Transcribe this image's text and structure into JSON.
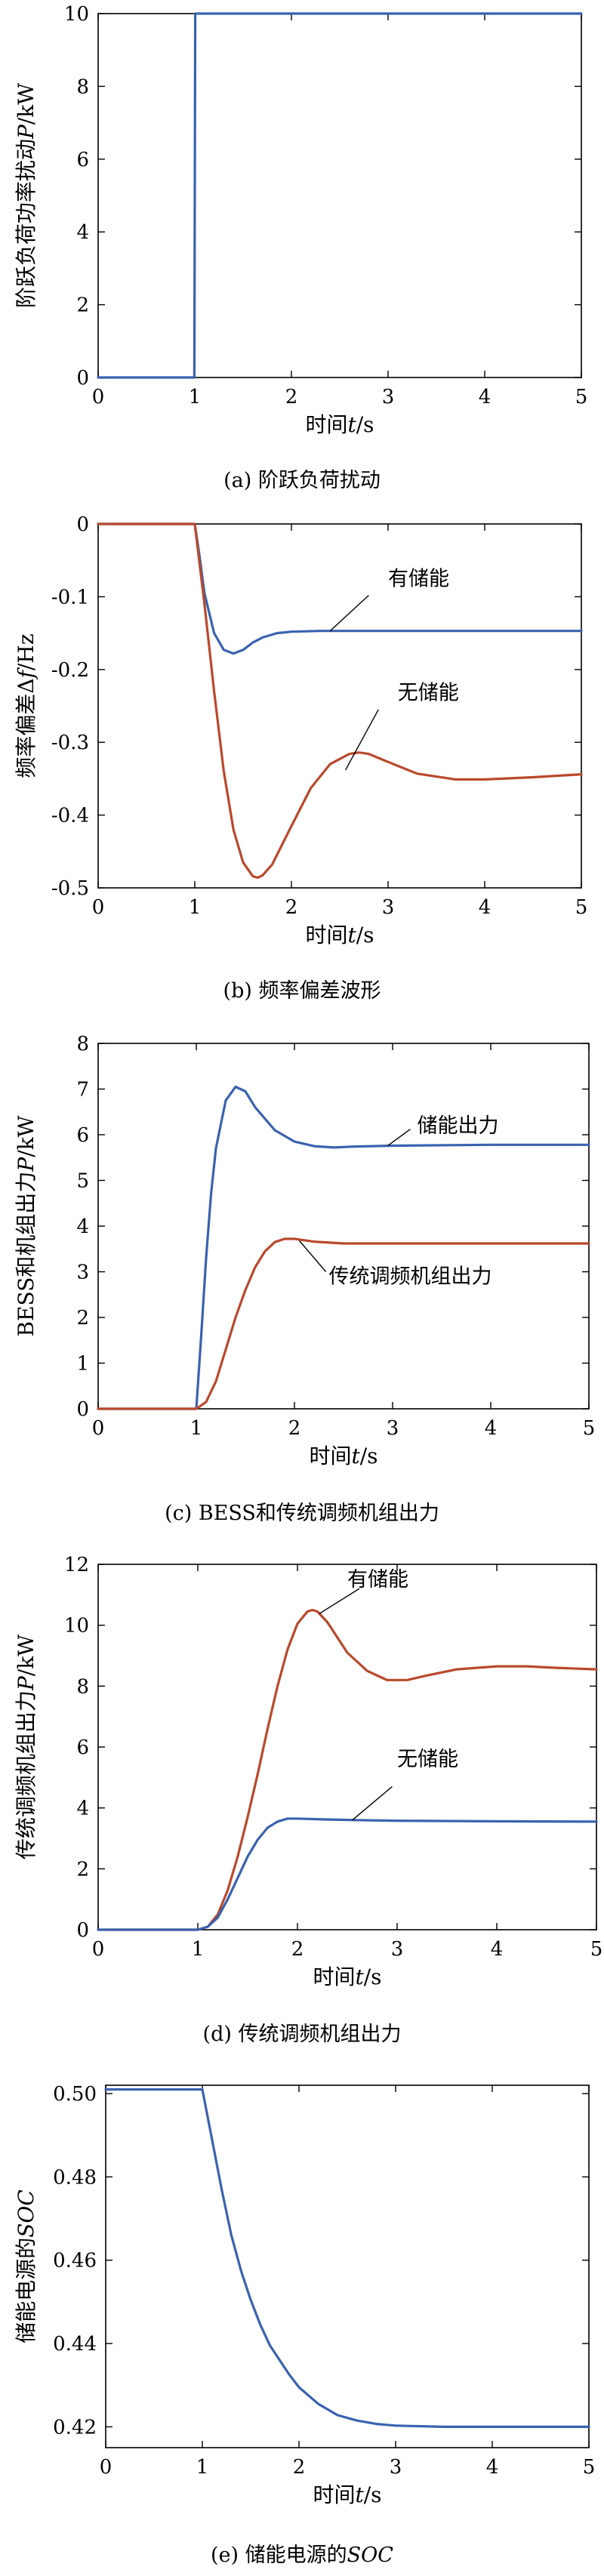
{
  "colors": {
    "blue": "#3a62b0",
    "red": "#b9492c",
    "axis": "#000000"
  },
  "charts": [
    {
      "type": "line",
      "title": "",
      "caption": "(a) 阶跃负荷扰动",
      "xlabel": "时间t/s",
      "ylabel": "阶跃负荷功率扰动P/kW",
      "xlim": [
        0,
        5
      ],
      "ylim": [
        0,
        10
      ],
      "xticks": [
        0,
        1,
        2,
        3,
        4,
        5
      ],
      "yticks": [
        0,
        2,
        4,
        6,
        8,
        10
      ],
      "ytick_labels": [
        "0",
        "2",
        "4",
        "6",
        "8",
        "10"
      ],
      "grid": false,
      "series": [
        {
          "color": "blue",
          "x": [
            0.0,
            0.995,
            1.0,
            1.005,
            5.0
          ],
          "y": [
            0.0,
            0.0,
            5.0,
            10.0,
            10.0
          ]
        }
      ],
      "annotations": []
    },
    {
      "type": "line",
      "title": "",
      "caption": "(b) 频率偏差波形",
      "xlabel": "时间t/s",
      "ylabel": "频率偏差Δf/Hz",
      "xlim": [
        0,
        5
      ],
      "ylim": [
        -0.5,
        0
      ],
      "xticks": [
        0,
        1,
        2,
        3,
        4,
        5
      ],
      "yticks": [
        0,
        -0.1,
        -0.2,
        -0.3,
        -0.4,
        -0.5
      ],
      "ytick_labels": [
        "0",
        "-0.1",
        "-0.2",
        "-0.3",
        "-0.4",
        "-0.5"
      ],
      "grid": false,
      "series": [
        {
          "color": "blue",
          "x": [
            0.0,
            1.0,
            1.05,
            1.1,
            1.2,
            1.3,
            1.4,
            1.5,
            1.6,
            1.7,
            1.85,
            2.0,
            2.3,
            2.7,
            3.2,
            4.0,
            5.0
          ],
          "y": [
            0.0,
            0.0,
            -0.045,
            -0.095,
            -0.15,
            -0.173,
            -0.178,
            -0.173,
            -0.163,
            -0.156,
            -0.15,
            -0.148,
            -0.147,
            -0.147,
            -0.147,
            -0.147,
            -0.147
          ]
        },
        {
          "color": "red",
          "x": [
            0.0,
            1.0,
            1.1,
            1.2,
            1.3,
            1.4,
            1.5,
            1.6,
            1.65,
            1.7,
            1.8,
            2.0,
            2.2,
            2.4,
            2.6,
            2.7,
            2.8,
            3.0,
            3.3,
            3.7,
            4.0,
            4.5,
            5.0
          ],
          "y": [
            0.0,
            0.0,
            -0.11,
            -0.23,
            -0.34,
            -0.42,
            -0.465,
            -0.484,
            -0.486,
            -0.483,
            -0.468,
            -0.415,
            -0.363,
            -0.33,
            -0.316,
            -0.314,
            -0.316,
            -0.327,
            -0.343,
            -0.351,
            -0.351,
            -0.348,
            -0.344
          ]
        }
      ],
      "annotations": [
        {
          "text": "有储能",
          "label_x": 3.0,
          "label_y": -0.075,
          "tip_x": 2.4,
          "tip_y": -0.147,
          "elbow_x": 2.8,
          "elbow_y": -0.098
        },
        {
          "text": "无储能",
          "label_x": 3.1,
          "label_y": -0.232,
          "tip_x": 2.56,
          "tip_y": -0.338,
          "elbow_x": 2.9,
          "elbow_y": -0.255
        }
      ]
    },
    {
      "type": "line",
      "title": "",
      "caption": "(c) BESS和传统调频机组出力",
      "xlabel": "时间t/s",
      "ylabel": "BESS和机组出力P/kW",
      "xlim": [
        0,
        5
      ],
      "ylim": [
        0,
        8
      ],
      "xticks": [
        0,
        1,
        2,
        3,
        4,
        5
      ],
      "yticks": [
        0,
        1,
        2,
        3,
        4,
        5,
        6,
        7,
        8
      ],
      "ytick_labels": [
        "0",
        "1",
        "2",
        "3",
        "4",
        "5",
        "6",
        "7",
        "8"
      ],
      "grid": false,
      "series": [
        {
          "color": "blue",
          "x": [
            0.0,
            1.0,
            1.05,
            1.1,
            1.15,
            1.2,
            1.3,
            1.4,
            1.5,
            1.6,
            1.8,
            2.0,
            2.2,
            2.4,
            2.6,
            3.0,
            4.0,
            5.0
          ],
          "y": [
            0.0,
            0.0,
            1.6,
            3.3,
            4.7,
            5.7,
            6.75,
            7.05,
            6.95,
            6.6,
            6.1,
            5.85,
            5.75,
            5.72,
            5.74,
            5.76,
            5.78,
            5.78
          ]
        },
        {
          "color": "red",
          "x": [
            0.0,
            1.0,
            1.1,
            1.2,
            1.3,
            1.4,
            1.5,
            1.6,
            1.7,
            1.8,
            1.9,
            2.0,
            2.2,
            2.5,
            3.0,
            4.0,
            5.0
          ],
          "y": [
            0.0,
            0.0,
            0.15,
            0.6,
            1.3,
            2.0,
            2.6,
            3.1,
            3.45,
            3.65,
            3.72,
            3.72,
            3.66,
            3.62,
            3.62,
            3.62,
            3.62
          ]
        }
      ],
      "annotations": [
        {
          "text": "储能出力",
          "label_x": 3.25,
          "label_y": 6.2,
          "tip_x": 2.95,
          "tip_y": 5.76,
          "elbow_x": 3.18,
          "elbow_y": 6.12
        },
        {
          "text": "传统调频机组出力",
          "label_x": 2.35,
          "label_y": 2.9,
          "tip_x": 2.05,
          "tip_y": 3.68,
          "elbow_x": 2.32,
          "elbow_y": 3.0
        }
      ]
    },
    {
      "type": "line",
      "title": "",
      "caption": "(d) 传统调频机组出力",
      "xlabel": "时间t/s",
      "ylabel": "传统调频机组出力P/kW",
      "xlim": [
        0,
        5
      ],
      "ylim": [
        0,
        12
      ],
      "xticks": [
        0,
        1,
        2,
        3,
        4,
        5
      ],
      "yticks": [
        0,
        2,
        4,
        6,
        8,
        10,
        12
      ],
      "ytick_labels": [
        "0",
        "2",
        "4",
        "6",
        "8",
        "10",
        "12"
      ],
      "grid": false,
      "series": [
        {
          "color": "red",
          "x": [
            0.0,
            1.0,
            1.1,
            1.2,
            1.3,
            1.4,
            1.5,
            1.6,
            1.7,
            1.8,
            1.9,
            2.0,
            2.1,
            2.15,
            2.2,
            2.3,
            2.5,
            2.7,
            2.9,
            3.1,
            3.3,
            3.6,
            4.0,
            4.3,
            4.6,
            5.0
          ],
          "y": [
            0.0,
            0.0,
            0.1,
            0.5,
            1.3,
            2.4,
            3.7,
            5.1,
            6.6,
            8.0,
            9.2,
            10.05,
            10.45,
            10.5,
            10.45,
            10.1,
            9.1,
            8.5,
            8.2,
            8.2,
            8.35,
            8.55,
            8.65,
            8.65,
            8.6,
            8.55
          ]
        },
        {
          "color": "blue",
          "x": [
            0.0,
            1.0,
            1.1,
            1.2,
            1.3,
            1.4,
            1.5,
            1.6,
            1.7,
            1.8,
            1.9,
            2.0,
            2.3,
            2.6,
            3.0,
            4.0,
            5.0
          ],
          "y": [
            0.0,
            0.0,
            0.1,
            0.4,
            1.0,
            1.7,
            2.4,
            2.95,
            3.35,
            3.55,
            3.65,
            3.65,
            3.62,
            3.6,
            3.58,
            3.56,
            3.55
          ]
        }
      ],
      "annotations": [
        {
          "text": "有储能",
          "label_x": 2.5,
          "label_y": 11.5,
          "tip_x": 2.22,
          "tip_y": 10.38,
          "elbow_x": 2.62,
          "elbow_y": 11.2
        },
        {
          "text": "无储能",
          "label_x": 3.0,
          "label_y": 5.6,
          "tip_x": 2.55,
          "tip_y": 3.6,
          "elbow_x": 2.95,
          "elbow_y": 4.7
        }
      ]
    },
    {
      "type": "line",
      "title": "",
      "caption": "(e) 储能电源的SOC",
      "xlabel": "时间t/s",
      "ylabel": "储能电源的SOC",
      "xlim": [
        0,
        5
      ],
      "ylim": [
        0.415,
        0.502
      ],
      "xticks": [
        0,
        1,
        2,
        3,
        4,
        5
      ],
      "yticks": [
        0.42,
        0.44,
        0.46,
        0.48,
        0.5
      ],
      "ytick_labels": [
        "0.42",
        "0.44",
        "0.46",
        "0.48",
        "0.50"
      ],
      "grid": false,
      "series": [
        {
          "color": "blue",
          "x": [
            0.0,
            1.0,
            1.05,
            1.1,
            1.2,
            1.3,
            1.4,
            1.5,
            1.6,
            1.7,
            1.8,
            1.9,
            2.0,
            2.2,
            2.4,
            2.6,
            2.8,
            3.0,
            3.5,
            4.0,
            4.5,
            5.0
          ],
          "y": [
            0.501,
            0.501,
            0.495,
            0.489,
            0.477,
            0.466,
            0.4575,
            0.4505,
            0.4445,
            0.4395,
            0.436,
            0.4325,
            0.4295,
            0.4255,
            0.4228,
            0.4215,
            0.4207,
            0.4203,
            0.42,
            0.42,
            0.42,
            0.42
          ]
        }
      ],
      "annotations": []
    }
  ]
}
